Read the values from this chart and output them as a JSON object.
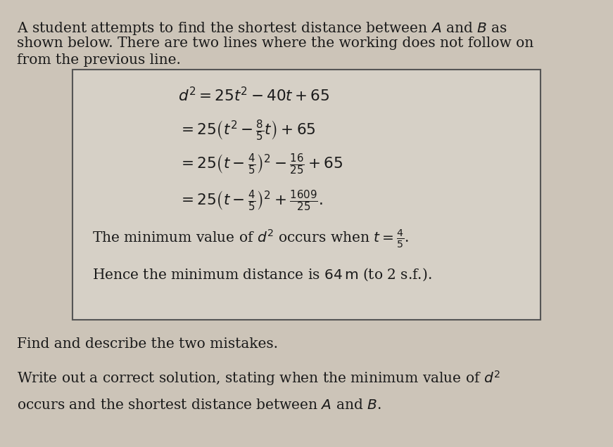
{
  "bg_color": "#ccc4b8",
  "box_bg_color": "#d6d0c6",
  "box_edge_color": "#555555",
  "text_color": "#1a1a1a",
  "header_line1": "A student attempts to find the shortest distance between $A$ and $B$ as",
  "header_line2": "shown below. There are two lines where the working does not follow on",
  "header_line3": "from the previous line.",
  "eq1": "$d^2 = 25t^2 - 40t + 65$",
  "eq2": "$= 25\\left(t^2 - \\frac{8}{5}t\\right) + 65$",
  "eq3": "$= 25\\left(t - \\frac{4}{5}\\right)^2 - \\frac{16}{25} + 65$",
  "eq4": "$= 25\\left(t - \\frac{4}{5}\\right)^2 + \\frac{1609}{25}.$",
  "box_line1": "The minimum value of $d^2$ occurs when $t = \\frac{4}{5}$.",
  "box_line2": "Hence the minimum distance is $64\\,\\mathrm{m}$ (to 2 s.f.).",
  "footer_line1": "Find and describe the two mistakes.",
  "footer_line2": "Write out a correct solution, stating when the minimum value of $d^2$",
  "footer_line3": "occurs and the shortest distance between $A$ and $B$.",
  "font_size_header": 14.5,
  "font_size_eq": 15.5,
  "font_size_box_text": 14.5,
  "font_size_footer": 14.5
}
